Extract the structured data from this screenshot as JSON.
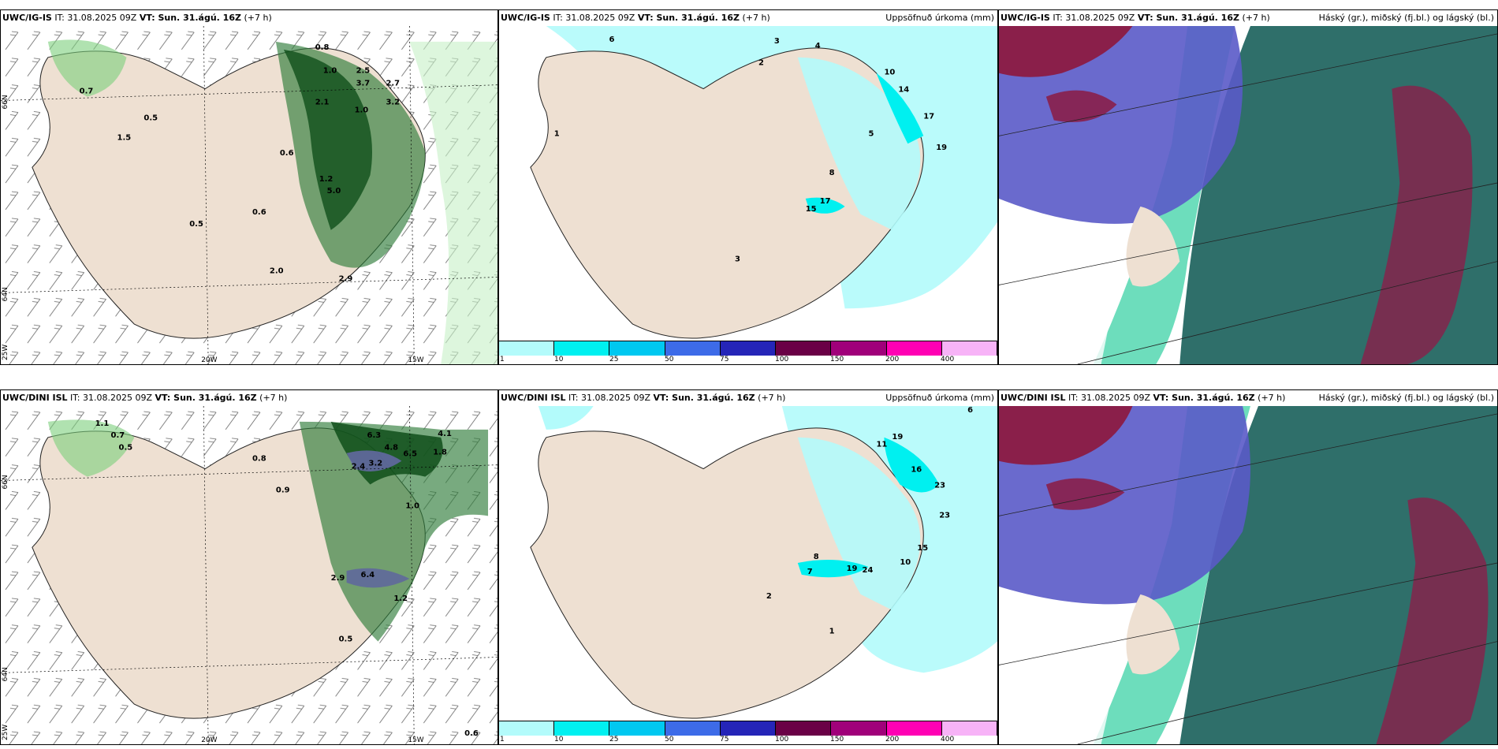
{
  "panels": [
    {
      "header_model": "UWC/IG-IS",
      "header_it": "IT: 31.08.2025 09Z",
      "header_vt": "VT: Sun. 31.ágú. 16Z",
      "header_lead": "(+7 h)",
      "right_title": ""
    },
    {
      "header_model": "UWC/IG-IS",
      "header_it": "IT: 31.08.2025 09Z",
      "header_vt": "VT: Sun. 31.ágú. 16Z",
      "header_lead": "(+7 h)",
      "right_title": "Uppsöfnuð úrkoma (mm)"
    },
    {
      "header_model": "UWC/IG-IS",
      "header_it": "IT: 31.08.2025 09Z",
      "header_vt": "VT: Sun. 31.ágú. 16Z",
      "header_lead": "(+7 h)",
      "right_title": "Háský (gr.), miðský (fj.bl.) og lágský (bl.)"
    },
    {
      "header_model": "UWC/DINI ISL",
      "header_it": "IT: 31.08.2025 09Z",
      "header_vt": "VT: Sun. 31.ágú. 16Z",
      "header_lead": "(+7 h)",
      "right_title": ""
    },
    {
      "header_model": "UWC/DINI ISL",
      "header_it": "IT: 31.08.2025 09Z",
      "header_vt": "VT: Sun. 31.ágú. 16Z",
      "header_lead": "(+7 h)",
      "right_title": "Uppsöfnuð úrkoma (mm)"
    },
    {
      "header_model": "UWC/DINI ISL",
      "header_it": "IT: 31.08.2025 09Z",
      "header_vt": "VT: Sun. 31.ágú. 16Z",
      "header_lead": "(+7 h)",
      "right_title": "Háský (gr.), miðský (fj.bl.) og lágský (bl.)"
    }
  ],
  "axes": {
    "lon_20w": "20W",
    "lon_15w": "15W",
    "lon_25w": "25W",
    "lat_66n": "66N",
    "lat_64n": "64N"
  },
  "precip_colorbar": {
    "labels": [
      "1",
      "10",
      "25",
      "50",
      "75",
      "100",
      "150",
      "200",
      "400"
    ],
    "colors": [
      "#b3fbfb",
      "#00f0f0",
      "#00c8f0",
      "#3d6be8",
      "#2525b8",
      "#6a0046",
      "#a0007a",
      "#ff00b4",
      "#f7b3f7"
    ]
  },
  "wind_values_top": [
    "0.8",
    "1.0",
    "2.5",
    "3.7",
    "2.7",
    "3.2",
    "1.0",
    "2.1",
    "0.5",
    "0.7",
    "1.5",
    "0.6",
    "5.0",
    "1.2",
    "0.5",
    "0.6",
    "2.0",
    "2.9"
  ],
  "wind_values_bottom": [
    "1.1",
    "0.7",
    "0.5",
    "6.3",
    "4.8",
    "6.5",
    "4.1",
    "1.8",
    "3.2",
    "2.4",
    "0.9",
    "0.8",
    "1.0",
    "2.9",
    "6.4",
    "1.2",
    "0.5",
    "0.6"
  ],
  "precip_values_top": [
    "6",
    "3",
    "4",
    "2",
    "1",
    "10",
    "14",
    "17",
    "19",
    "5",
    "8",
    "15",
    "17",
    "3"
  ],
  "precip_values_bottom": [
    "19",
    "11",
    "16",
    "23",
    "23",
    "15",
    "8",
    "19",
    "24",
    "7",
    "10",
    "6",
    "2",
    "1"
  ]
}
